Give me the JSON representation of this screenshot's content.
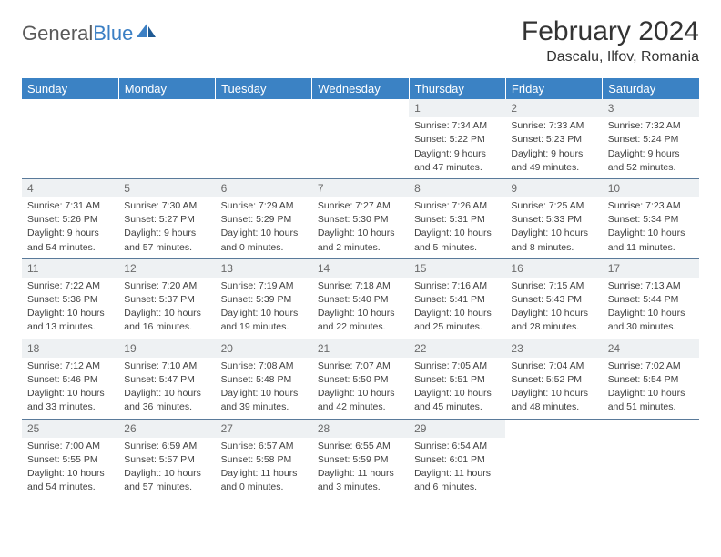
{
  "brand": {
    "part1": "General",
    "part2": "Blue"
  },
  "title": "February 2024",
  "location": "Dascalu, Ilfov, Romania",
  "colors": {
    "header_bg": "#3b82c4",
    "header_fg": "#ffffff",
    "daynum_bg": "#eef1f3",
    "daynum_fg": "#6a6a6a",
    "text": "#414141",
    "rule": "#5a7a9a",
    "logo_gray": "#5a5a5a",
    "logo_blue": "#3b7fc4"
  },
  "fonts": {
    "base_family": "Arial",
    "title_size_pt": 22,
    "location_size_pt": 12,
    "header_size_pt": 10,
    "cell_size_pt": 8
  },
  "weekdays": [
    "Sunday",
    "Monday",
    "Tuesday",
    "Wednesday",
    "Thursday",
    "Friday",
    "Saturday"
  ],
  "weeks": [
    [
      null,
      null,
      null,
      null,
      {
        "n": "1",
        "sunrise": "Sunrise: 7:34 AM",
        "sunset": "Sunset: 5:22 PM",
        "day1": "Daylight: 9 hours",
        "day2": "and 47 minutes."
      },
      {
        "n": "2",
        "sunrise": "Sunrise: 7:33 AM",
        "sunset": "Sunset: 5:23 PM",
        "day1": "Daylight: 9 hours",
        "day2": "and 49 minutes."
      },
      {
        "n": "3",
        "sunrise": "Sunrise: 7:32 AM",
        "sunset": "Sunset: 5:24 PM",
        "day1": "Daylight: 9 hours",
        "day2": "and 52 minutes."
      }
    ],
    [
      {
        "n": "4",
        "sunrise": "Sunrise: 7:31 AM",
        "sunset": "Sunset: 5:26 PM",
        "day1": "Daylight: 9 hours",
        "day2": "and 54 minutes."
      },
      {
        "n": "5",
        "sunrise": "Sunrise: 7:30 AM",
        "sunset": "Sunset: 5:27 PM",
        "day1": "Daylight: 9 hours",
        "day2": "and 57 minutes."
      },
      {
        "n": "6",
        "sunrise": "Sunrise: 7:29 AM",
        "sunset": "Sunset: 5:29 PM",
        "day1": "Daylight: 10 hours",
        "day2": "and 0 minutes."
      },
      {
        "n": "7",
        "sunrise": "Sunrise: 7:27 AM",
        "sunset": "Sunset: 5:30 PM",
        "day1": "Daylight: 10 hours",
        "day2": "and 2 minutes."
      },
      {
        "n": "8",
        "sunrise": "Sunrise: 7:26 AM",
        "sunset": "Sunset: 5:31 PM",
        "day1": "Daylight: 10 hours",
        "day2": "and 5 minutes."
      },
      {
        "n": "9",
        "sunrise": "Sunrise: 7:25 AM",
        "sunset": "Sunset: 5:33 PM",
        "day1": "Daylight: 10 hours",
        "day2": "and 8 minutes."
      },
      {
        "n": "10",
        "sunrise": "Sunrise: 7:23 AM",
        "sunset": "Sunset: 5:34 PM",
        "day1": "Daylight: 10 hours",
        "day2": "and 11 minutes."
      }
    ],
    [
      {
        "n": "11",
        "sunrise": "Sunrise: 7:22 AM",
        "sunset": "Sunset: 5:36 PM",
        "day1": "Daylight: 10 hours",
        "day2": "and 13 minutes."
      },
      {
        "n": "12",
        "sunrise": "Sunrise: 7:20 AM",
        "sunset": "Sunset: 5:37 PM",
        "day1": "Daylight: 10 hours",
        "day2": "and 16 minutes."
      },
      {
        "n": "13",
        "sunrise": "Sunrise: 7:19 AM",
        "sunset": "Sunset: 5:39 PM",
        "day1": "Daylight: 10 hours",
        "day2": "and 19 minutes."
      },
      {
        "n": "14",
        "sunrise": "Sunrise: 7:18 AM",
        "sunset": "Sunset: 5:40 PM",
        "day1": "Daylight: 10 hours",
        "day2": "and 22 minutes."
      },
      {
        "n": "15",
        "sunrise": "Sunrise: 7:16 AM",
        "sunset": "Sunset: 5:41 PM",
        "day1": "Daylight: 10 hours",
        "day2": "and 25 minutes."
      },
      {
        "n": "16",
        "sunrise": "Sunrise: 7:15 AM",
        "sunset": "Sunset: 5:43 PM",
        "day1": "Daylight: 10 hours",
        "day2": "and 28 minutes."
      },
      {
        "n": "17",
        "sunrise": "Sunrise: 7:13 AM",
        "sunset": "Sunset: 5:44 PM",
        "day1": "Daylight: 10 hours",
        "day2": "and 30 minutes."
      }
    ],
    [
      {
        "n": "18",
        "sunrise": "Sunrise: 7:12 AM",
        "sunset": "Sunset: 5:46 PM",
        "day1": "Daylight: 10 hours",
        "day2": "and 33 minutes."
      },
      {
        "n": "19",
        "sunrise": "Sunrise: 7:10 AM",
        "sunset": "Sunset: 5:47 PM",
        "day1": "Daylight: 10 hours",
        "day2": "and 36 minutes."
      },
      {
        "n": "20",
        "sunrise": "Sunrise: 7:08 AM",
        "sunset": "Sunset: 5:48 PM",
        "day1": "Daylight: 10 hours",
        "day2": "and 39 minutes."
      },
      {
        "n": "21",
        "sunrise": "Sunrise: 7:07 AM",
        "sunset": "Sunset: 5:50 PM",
        "day1": "Daylight: 10 hours",
        "day2": "and 42 minutes."
      },
      {
        "n": "22",
        "sunrise": "Sunrise: 7:05 AM",
        "sunset": "Sunset: 5:51 PM",
        "day1": "Daylight: 10 hours",
        "day2": "and 45 minutes."
      },
      {
        "n": "23",
        "sunrise": "Sunrise: 7:04 AM",
        "sunset": "Sunset: 5:52 PM",
        "day1": "Daylight: 10 hours",
        "day2": "and 48 minutes."
      },
      {
        "n": "24",
        "sunrise": "Sunrise: 7:02 AM",
        "sunset": "Sunset: 5:54 PM",
        "day1": "Daylight: 10 hours",
        "day2": "and 51 minutes."
      }
    ],
    [
      {
        "n": "25",
        "sunrise": "Sunrise: 7:00 AM",
        "sunset": "Sunset: 5:55 PM",
        "day1": "Daylight: 10 hours",
        "day2": "and 54 minutes."
      },
      {
        "n": "26",
        "sunrise": "Sunrise: 6:59 AM",
        "sunset": "Sunset: 5:57 PM",
        "day1": "Daylight: 10 hours",
        "day2": "and 57 minutes."
      },
      {
        "n": "27",
        "sunrise": "Sunrise: 6:57 AM",
        "sunset": "Sunset: 5:58 PM",
        "day1": "Daylight: 11 hours",
        "day2": "and 0 minutes."
      },
      {
        "n": "28",
        "sunrise": "Sunrise: 6:55 AM",
        "sunset": "Sunset: 5:59 PM",
        "day1": "Daylight: 11 hours",
        "day2": "and 3 minutes."
      },
      {
        "n": "29",
        "sunrise": "Sunrise: 6:54 AM",
        "sunset": "Sunset: 6:01 PM",
        "day1": "Daylight: 11 hours",
        "day2": "and 6 minutes."
      },
      null,
      null
    ]
  ]
}
